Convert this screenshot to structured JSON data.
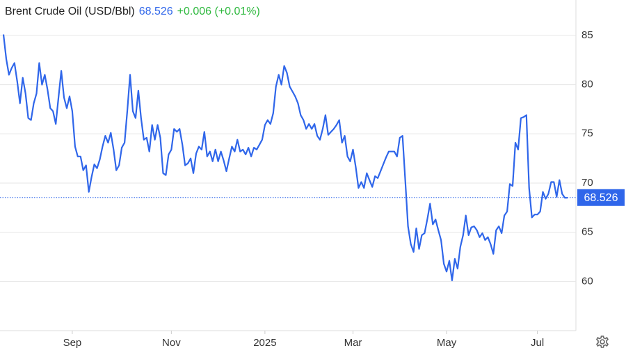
{
  "chart_data": {
    "type": "line",
    "title": "Brent Crude Oil (USD/Bbl)",
    "last_price": 68.526,
    "change_label": "+0.006 (+0.01%)",
    "series": [
      {
        "name": "Brent Crude Oil",
        "color": "#2f66ea",
        "values": [
          85.1,
          82.6,
          81.0,
          81.7,
          82.2,
          80.3,
          78.1,
          80.7,
          79.1,
          76.6,
          76.4,
          78.1,
          79.1,
          82.2,
          80.0,
          81.0,
          79.5,
          77.6,
          77.3,
          76.0,
          78.7,
          81.4,
          78.7,
          77.6,
          78.8,
          77.3,
          73.7,
          72.7,
          72.7,
          71.3,
          71.8,
          69.1,
          70.6,
          71.9,
          71.5,
          72.4,
          73.7,
          74.8,
          74.1,
          75.1,
          73.4,
          71.3,
          71.8,
          73.6,
          74.1,
          77.4,
          81.0,
          77.3,
          76.6,
          79.4,
          76.6,
          74.4,
          74.6,
          73.2,
          75.9,
          74.4,
          75.9,
          74.6,
          71.0,
          70.8,
          72.9,
          73.4,
          75.5,
          75.2,
          75.5,
          73.9,
          71.8,
          72.0,
          72.5,
          71.0,
          73.0,
          73.7,
          73.4,
          75.2,
          72.7,
          73.2,
          72.2,
          73.4,
          72.2,
          73.2,
          72.3,
          71.2,
          72.5,
          73.7,
          73.2,
          74.4,
          73.2,
          73.4,
          72.9,
          73.6,
          72.7,
          73.6,
          73.4,
          73.9,
          74.4,
          75.9,
          76.4,
          76.0,
          77.1,
          79.8,
          81.0,
          80.0,
          81.9,
          81.2,
          79.8,
          79.3,
          78.8,
          78.1,
          76.9,
          76.4,
          75.5,
          76.0,
          75.5,
          76.0,
          74.8,
          74.4,
          75.5,
          76.9,
          74.9,
          75.2,
          75.5,
          75.9,
          76.4,
          74.1,
          74.8,
          72.7,
          72.2,
          73.4,
          71.6,
          69.5,
          70.1,
          69.5,
          71.0,
          70.3,
          69.6,
          70.7,
          70.5,
          71.2,
          71.9,
          72.6,
          73.2,
          73.2,
          73.2,
          72.7,
          74.6,
          74.8,
          70.2,
          65.6,
          63.8,
          63.0,
          65.4,
          63.3,
          64.7,
          64.9,
          66.3,
          67.9,
          65.8,
          66.3,
          65.2,
          64.2,
          61.8,
          61.0,
          62.1,
          60.1,
          62.3,
          61.3,
          63.5,
          64.7,
          66.7,
          64.7,
          65.5,
          65.6,
          65.2,
          64.5,
          64.9,
          64.2,
          64.5,
          63.8,
          62.8,
          65.2,
          65.6,
          64.9,
          66.7,
          67.1,
          69.9,
          69.7,
          74.1,
          73.4,
          76.6,
          76.7,
          76.9,
          69.5,
          66.5,
          66.8,
          66.8,
          67.1,
          69.1,
          68.4,
          68.9,
          70.1,
          70.1,
          68.6,
          70.3,
          68.9,
          68.5,
          68.5
        ]
      }
    ],
    "xlim": [
      0,
      208
    ],
    "xticks": [
      {
        "value": 25,
        "label": "Sep"
      },
      {
        "value": 61,
        "label": "Nov"
      },
      {
        "value": 95,
        "label": "2025"
      },
      {
        "value": 127,
        "label": "Mar"
      },
      {
        "value": 161,
        "label": "May"
      },
      {
        "value": 194,
        "label": "Jul"
      }
    ],
    "ylim": [
      55,
      88.6
    ],
    "yticks": [
      60,
      65,
      70,
      75,
      80,
      85
    ],
    "grid": true,
    "price_color": "#2f66ea",
    "change_color": "#2db83d"
  }
}
